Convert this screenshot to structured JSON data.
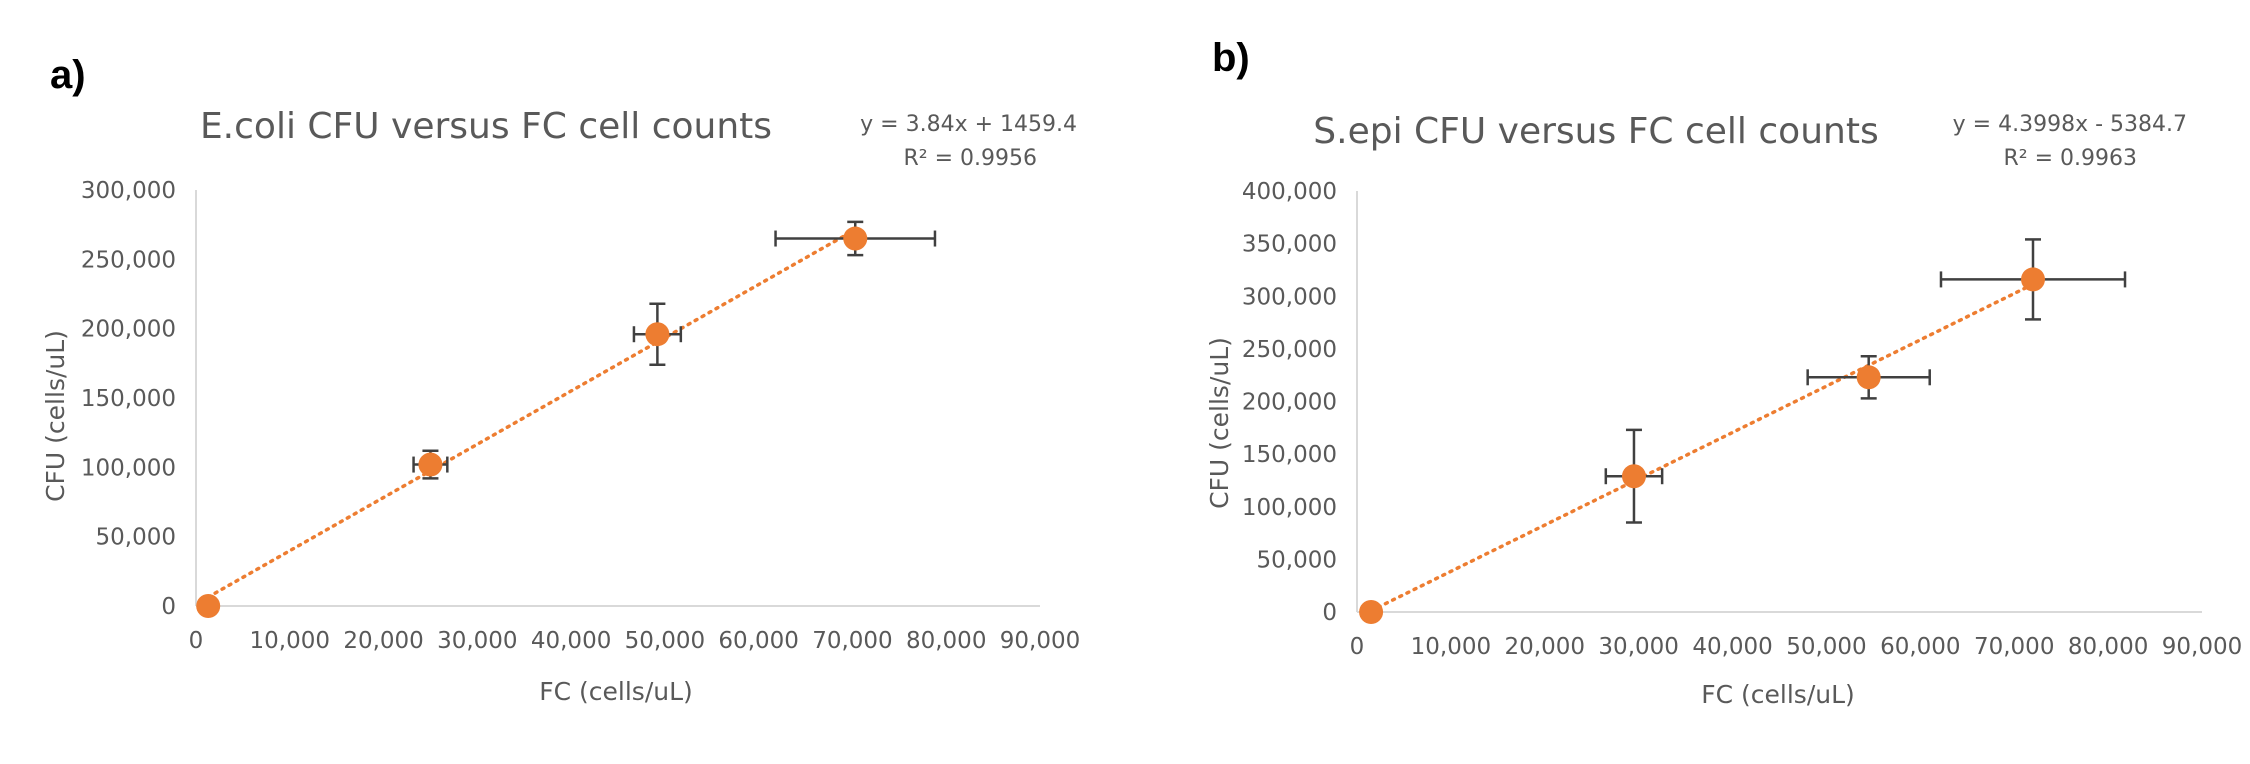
{
  "chart_data": [
    {
      "type": "scatter",
      "panel_label": "a)",
      "title": "E.coli CFU versus FC cell counts",
      "xlabel": "FC (cells/uL)",
      "ylabel": "CFU (cells/uL)",
      "xlim": [
        0,
        90000
      ],
      "ylim": [
        0,
        300000
      ],
      "xticks": [
        "0",
        "10,000",
        "20,000",
        "30,000",
        "40,000",
        "50,000",
        "60,000",
        "70,000",
        "80,000",
        "90,000"
      ],
      "yticks": [
        "0",
        "50,000",
        "100,000",
        "150,000",
        "200,000",
        "250,000",
        "300,000"
      ],
      "grid": false,
      "trendline": {
        "type": "linear",
        "slope": 3.84,
        "intercept": 1459.4,
        "equation": "y = 3.84x + 1459.4",
        "r2": "R² = 0.9956"
      },
      "series": [
        {
          "color": "#ED7D31",
          "points": [
            {
              "x": 1300,
              "y": 0,
              "xerr": 0,
              "yerr": 0
            },
            {
              "x": 25000,
              "y": 102000,
              "xerr": 1800,
              "yerr": 10000
            },
            {
              "x": 49200,
              "y": 196000,
              "xerr": 2500,
              "yerr": 22000
            },
            {
              "x": 70300,
              "y": 265000,
              "xerr": 8500,
              "yerr": 12000
            }
          ]
        }
      ]
    },
    {
      "type": "scatter",
      "panel_label": "b)",
      "title": "S.epi CFU versus FC cell counts",
      "xlabel": "FC (cells/uL)",
      "ylabel": "CFU (cells/uL)",
      "xlim": [
        0,
        90000
      ],
      "ylim": [
        0,
        400000
      ],
      "xticks": [
        "0",
        "10,000",
        "20,000",
        "30,000",
        "40,000",
        "50,000",
        "60,000",
        "70,000",
        "80,000",
        "90,000"
      ],
      "yticks": [
        "0",
        "50,000",
        "100,000",
        "150,000",
        "200,000",
        "250,000",
        "300,000",
        "350,000",
        "400,000"
      ],
      "grid": false,
      "trendline": {
        "type": "linear",
        "slope": 4.3998,
        "intercept": -5384.7,
        "equation": "y = 4.3998x - 5384.7",
        "r2": "R² = 0.9963"
      },
      "series": [
        {
          "color": "#ED7D31",
          "points": [
            {
              "x": 1500,
              "y": 0,
              "xerr": 0,
              "yerr": 0
            },
            {
              "x": 29500,
              "y": 129000,
              "xerr": 3000,
              "yerr": 44000
            },
            {
              "x": 54500,
              "y": 223000,
              "xerr": 6500,
              "yerr": 20000
            },
            {
              "x": 72000,
              "y": 316000,
              "xerr": 9800,
              "yerr": 38000
            }
          ]
        }
      ]
    }
  ]
}
